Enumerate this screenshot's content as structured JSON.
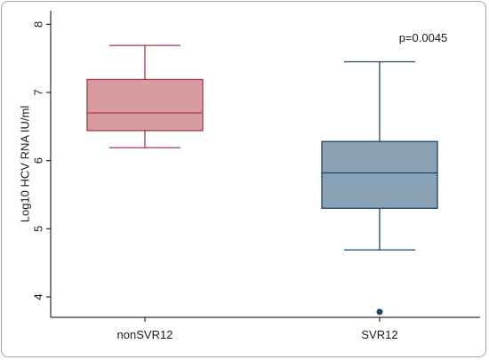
{
  "chart_data": {
    "type": "box",
    "categories": [
      "nonSVR12",
      "SVR12"
    ],
    "ylabel": "Log10 HCV RNA IU/ml",
    "ylim": [
      3.7,
      8.2
    ],
    "yticks": [
      4,
      5,
      6,
      7,
      8
    ],
    "grid": false,
    "annotation": "p=0.0045",
    "boxes": [
      {
        "category": "nonSVR12",
        "whisker_low": 6.19,
        "q1": 6.44,
        "median": 6.7,
        "q3": 7.19,
        "whisker_high": 7.69,
        "outliers": [],
        "fill": "#d99ba2",
        "stroke": "#a33b47"
      },
      {
        "category": "SVR12",
        "whisker_low": 4.69,
        "q1": 5.3,
        "median": 5.82,
        "q3": 6.28,
        "whisker_high": 7.45,
        "outliers": [
          3.78
        ],
        "fill": "#8aa2b6",
        "stroke": "#1f4566"
      }
    ]
  }
}
